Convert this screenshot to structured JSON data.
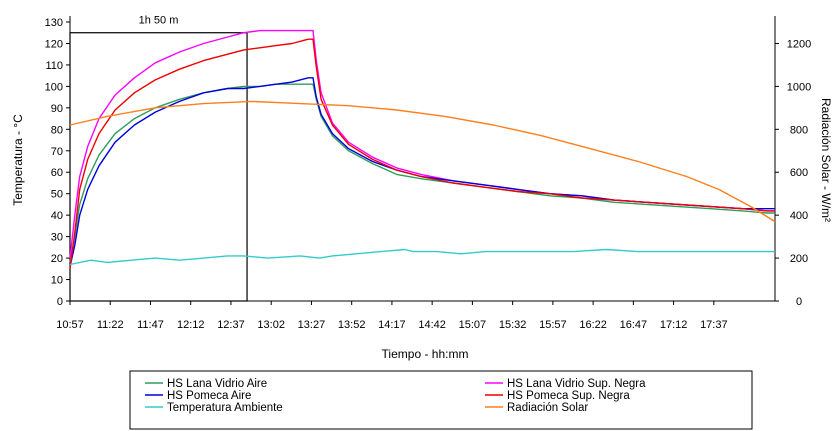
{
  "chart_data": {
    "type": "line",
    "title": "",
    "xlabel": "Tiempo - hh:mm",
    "ylabel_left": "Temperatura - °C",
    "ylabel_right": "Radiación Solar - W/m²",
    "y_left_range": [
      0,
      130
    ],
    "y_left_ticks": [
      0,
      10,
      20,
      30,
      40,
      50,
      60,
      70,
      80,
      90,
      100,
      110,
      120,
      130
    ],
    "y_right_range": [
      0,
      1300
    ],
    "y_right_ticks": [
      0,
      200,
      400,
      600,
      800,
      1000,
      1200
    ],
    "x_start_min": 657,
    "x_end_min": 1095,
    "x_tick_labels": [
      "10:57",
      "11:22",
      "11:47",
      "12:12",
      "12:37",
      "13:02",
      "13:27",
      "13:52",
      "14:17",
      "14:42",
      "15:07",
      "15:32",
      "15:57",
      "16:22",
      "16:47",
      "17:12",
      "17:37"
    ],
    "grid": false,
    "legend_position": "bottom",
    "annotation": {
      "label": "1h 50 m",
      "time_start_min": 657,
      "time_end_min": 767,
      "level": 125
    },
    "series": [
      {
        "name": "HS Lana Vidrio Aire",
        "axis": "left",
        "color": "#2e9e5b",
        "points": [
          [
            657,
            18
          ],
          [
            660,
            30
          ],
          [
            663,
            45
          ],
          [
            668,
            57
          ],
          [
            675,
            68
          ],
          [
            685,
            78
          ],
          [
            697,
            85
          ],
          [
            710,
            90
          ],
          [
            725,
            94
          ],
          [
            740,
            97
          ],
          [
            755,
            99
          ],
          [
            765,
            100
          ],
          [
            775,
            100
          ],
          [
            785,
            101
          ],
          [
            795,
            101
          ],
          [
            805,
            101
          ],
          [
            808,
            101
          ],
          [
            810,
            94
          ],
          [
            813,
            86
          ],
          [
            820,
            77
          ],
          [
            830,
            70
          ],
          [
            845,
            64
          ],
          [
            860,
            59
          ],
          [
            875,
            57
          ],
          [
            895,
            55
          ],
          [
            915,
            53
          ],
          [
            935,
            51
          ],
          [
            955,
            49
          ],
          [
            975,
            48
          ],
          [
            995,
            46
          ],
          [
            1015,
            45
          ],
          [
            1035,
            44
          ],
          [
            1055,
            43
          ],
          [
            1075,
            42
          ],
          [
            1090,
            41
          ],
          [
            1095,
            41
          ]
        ]
      },
      {
        "name": "HS Lana Vidrio Sup. Negra",
        "axis": "left",
        "color": "#ff00ff",
        "points": [
          [
            657,
            20
          ],
          [
            660,
            40
          ],
          [
            663,
            58
          ],
          [
            668,
            72
          ],
          [
            675,
            85
          ],
          [
            685,
            96
          ],
          [
            697,
            104
          ],
          [
            710,
            111
          ],
          [
            725,
            116
          ],
          [
            740,
            120
          ],
          [
            755,
            123
          ],
          [
            765,
            125
          ],
          [
            775,
            126
          ],
          [
            785,
            126
          ],
          [
            795,
            126
          ],
          [
            805,
            126
          ],
          [
            808,
            126
          ],
          [
            810,
            112
          ],
          [
            813,
            97
          ],
          [
            820,
            83
          ],
          [
            830,
            74
          ],
          [
            845,
            67
          ],
          [
            860,
            62
          ],
          [
            875,
            59
          ],
          [
            895,
            56
          ],
          [
            915,
            54
          ],
          [
            935,
            52
          ],
          [
            955,
            50
          ],
          [
            975,
            49
          ],
          [
            995,
            47
          ],
          [
            1015,
            46
          ],
          [
            1035,
            45
          ],
          [
            1055,
            44
          ],
          [
            1075,
            43
          ],
          [
            1090,
            42
          ],
          [
            1095,
            42
          ]
        ]
      },
      {
        "name": "HS Pomeca Aire",
        "axis": "left",
        "color": "#0000dd",
        "points": [
          [
            657,
            16
          ],
          [
            660,
            26
          ],
          [
            663,
            40
          ],
          [
            668,
            52
          ],
          [
            675,
            63
          ],
          [
            685,
            74
          ],
          [
            697,
            82
          ],
          [
            710,
            88
          ],
          [
            725,
            93
          ],
          [
            740,
            97
          ],
          [
            755,
            99
          ],
          [
            765,
            99
          ],
          [
            775,
            100
          ],
          [
            785,
            101
          ],
          [
            795,
            102
          ],
          [
            805,
            104
          ],
          [
            808,
            104
          ],
          [
            810,
            95
          ],
          [
            813,
            87
          ],
          [
            820,
            78
          ],
          [
            830,
            71
          ],
          [
            845,
            65
          ],
          [
            860,
            61
          ],
          [
            875,
            58
          ],
          [
            895,
            56
          ],
          [
            915,
            54
          ],
          [
            935,
            52
          ],
          [
            955,
            50
          ],
          [
            975,
            49
          ],
          [
            995,
            47
          ],
          [
            1015,
            46
          ],
          [
            1035,
            45
          ],
          [
            1055,
            44
          ],
          [
            1075,
            43
          ],
          [
            1090,
            43
          ],
          [
            1095,
            43
          ]
        ]
      },
      {
        "name": "HS Pomeca Sup. Negra",
        "axis": "left",
        "color": "#ee0000",
        "points": [
          [
            657,
            15
          ],
          [
            660,
            32
          ],
          [
            663,
            52
          ],
          [
            668,
            66
          ],
          [
            675,
            78
          ],
          [
            685,
            89
          ],
          [
            697,
            97
          ],
          [
            710,
            103
          ],
          [
            725,
            108
          ],
          [
            740,
            112
          ],
          [
            755,
            115
          ],
          [
            765,
            117
          ],
          [
            775,
            118
          ],
          [
            785,
            119
          ],
          [
            795,
            120
          ],
          [
            805,
            122
          ],
          [
            808,
            122
          ],
          [
            810,
            109
          ],
          [
            813,
            94
          ],
          [
            820,
            82
          ],
          [
            830,
            73
          ],
          [
            845,
            66
          ],
          [
            860,
            61
          ],
          [
            875,
            58
          ],
          [
            895,
            55
          ],
          [
            915,
            53
          ],
          [
            935,
            51
          ],
          [
            955,
            50
          ],
          [
            975,
            48
          ],
          [
            995,
            47
          ],
          [
            1015,
            46
          ],
          [
            1035,
            45
          ],
          [
            1055,
            44
          ],
          [
            1075,
            43
          ],
          [
            1090,
            42
          ],
          [
            1095,
            42
          ]
        ]
      },
      {
        "name": "Temperatura Ambiente",
        "axis": "left",
        "color": "#33cccc",
        "points": [
          [
            657,
            17
          ],
          [
            670,
            19
          ],
          [
            680,
            18
          ],
          [
            695,
            19
          ],
          [
            710,
            20
          ],
          [
            725,
            19
          ],
          [
            740,
            20
          ],
          [
            755,
            21
          ],
          [
            765,
            21
          ],
          [
            780,
            20
          ],
          [
            800,
            21
          ],
          [
            812,
            20
          ],
          [
            820,
            21
          ],
          [
            835,
            22
          ],
          [
            850,
            23
          ],
          [
            865,
            24
          ],
          [
            870,
            23
          ],
          [
            885,
            23
          ],
          [
            900,
            22
          ],
          [
            915,
            23
          ],
          [
            930,
            23
          ],
          [
            950,
            23
          ],
          [
            970,
            23
          ],
          [
            990,
            24
          ],
          [
            1010,
            23
          ],
          [
            1030,
            23
          ],
          [
            1050,
            23
          ],
          [
            1070,
            23
          ],
          [
            1095,
            23
          ]
        ]
      },
      {
        "name": "Radiación Solar",
        "axis": "right",
        "color": "#ff7f1f",
        "points": [
          [
            657,
            820
          ],
          [
            680,
            860
          ],
          [
            710,
            900
          ],
          [
            740,
            920
          ],
          [
            770,
            930
          ],
          [
            800,
            920
          ],
          [
            830,
            910
          ],
          [
            860,
            890
          ],
          [
            890,
            860
          ],
          [
            920,
            820
          ],
          [
            950,
            770
          ],
          [
            980,
            710
          ],
          [
            1010,
            650
          ],
          [
            1040,
            580
          ],
          [
            1060,
            520
          ],
          [
            1080,
            440
          ],
          [
            1095,
            370
          ]
        ]
      }
    ]
  }
}
